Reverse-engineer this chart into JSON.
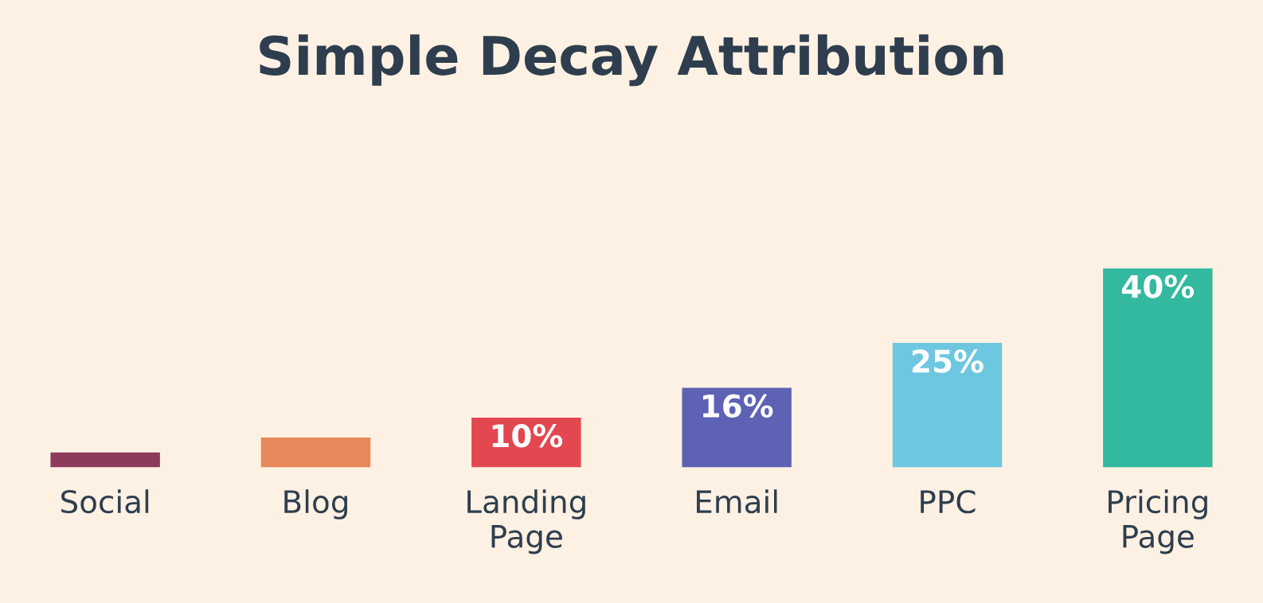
{
  "chart_data": {
    "type": "bar",
    "title": "Simple Decay Attribution",
    "categories": [
      "Social",
      "Blog",
      "Landing\nPage",
      "Email",
      "PPC",
      "Pricing\nPage"
    ],
    "values": [
      3,
      6,
      10,
      16,
      25,
      40
    ],
    "colors": [
      "#8e3a5d",
      "#e8875a",
      "#e3474f",
      "#5e62b4",
      "#6ec7e0",
      "#33b9a0"
    ],
    "value_labels": [
      null,
      null,
      "10%",
      "16%",
      "25%",
      "40%"
    ]
  }
}
